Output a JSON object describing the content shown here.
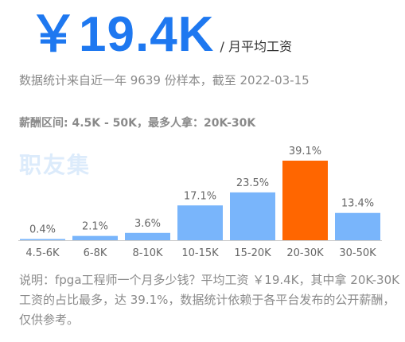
{
  "header": {
    "salary": "￥19.4K",
    "unit": "/ 月平均工资",
    "source": "数据统计来自近一年 9639 份样本，截至 2022-03-15",
    "range": "薪酬区间: 4.5K - 50K，最多人拿：20K-30K"
  },
  "watermark": "职友集",
  "chart_data": {
    "type": "bar",
    "title": "",
    "xlabel": "",
    "ylabel": "",
    "categories": [
      "4.5-6K",
      "6-8K",
      "8-10K",
      "10-15K",
      "15-20K",
      "20-30K",
      "30-50K"
    ],
    "values": [
      0.4,
      2.1,
      3.6,
      17.1,
      23.5,
      39.1,
      13.4
    ],
    "labels": [
      "0.4%",
      "2.1%",
      "3.6%",
      "17.1%",
      "23.5%",
      "39.1%",
      "13.4%"
    ],
    "highlight_index": 5,
    "colors": {
      "bar": "#79b5fb",
      "highlight": "#ff6600",
      "axis": "#cccccc"
    },
    "grid": false
  },
  "note": "说明：fpga工程师一个月多少钱？平均工资 ￥19.4K，其中拿 20K-30K 工资的占比最多，达 39.1%，数据统计依赖于各平台发布的公开薪酬，仅供参考。"
}
